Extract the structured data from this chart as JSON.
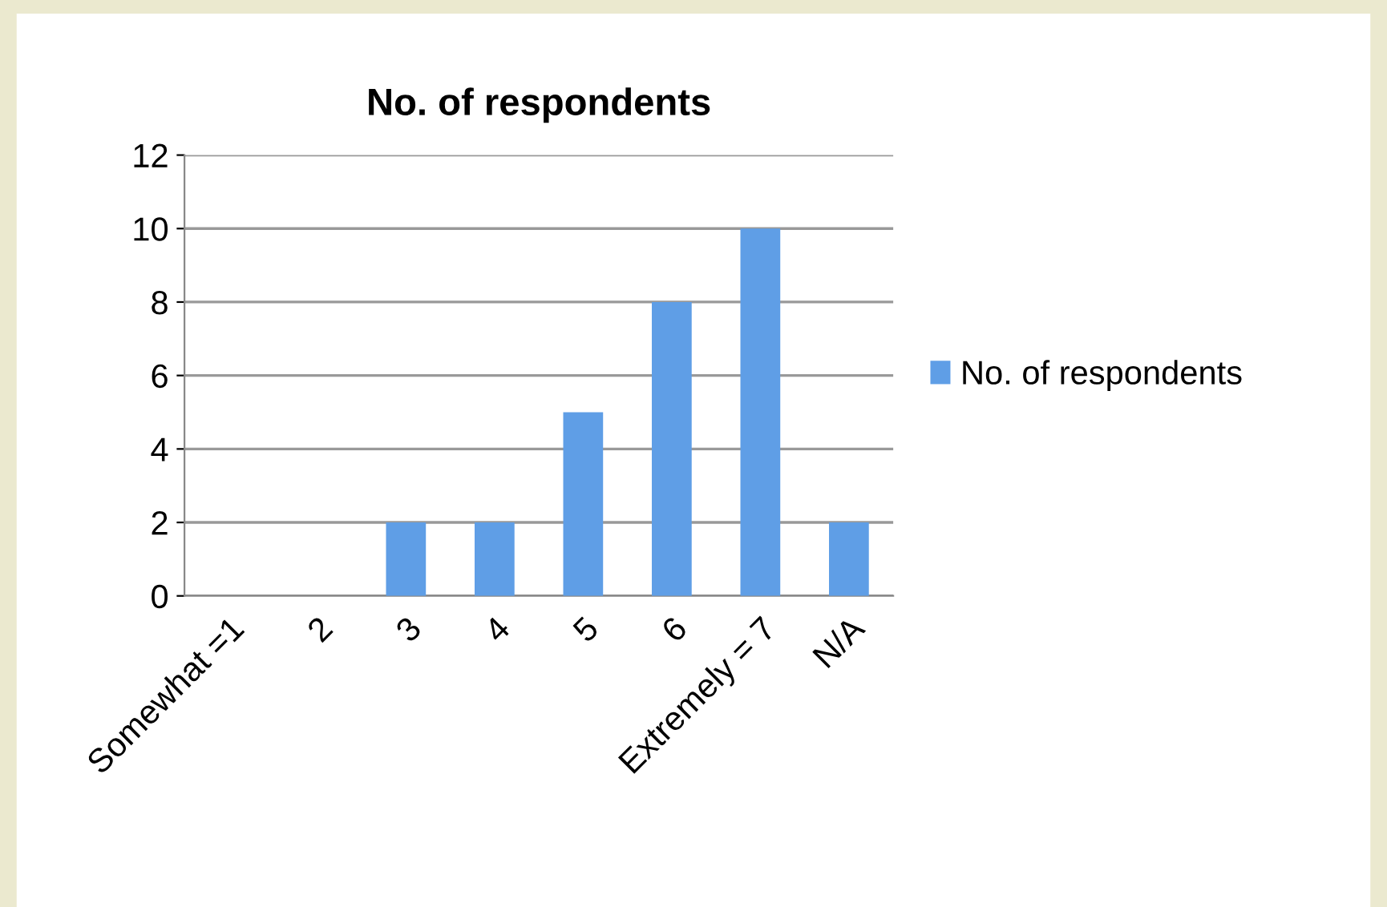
{
  "chart_data": {
    "type": "bar",
    "title": "No. of respondents",
    "categories": [
      "Somewhat =1",
      "2",
      "3",
      "4",
      "5",
      "6",
      "Extremely = 7",
      "N/A"
    ],
    "series": [
      {
        "name": "No. of respondents",
        "color": "#5f9ee6",
        "values": [
          0,
          0,
          2,
          2,
          5,
          8,
          10,
          2
        ]
      }
    ],
    "ylim": [
      0,
      12
    ],
    "yticks": [
      0,
      2,
      4,
      6,
      8,
      10,
      12
    ],
    "grid": "y",
    "legend": "right"
  }
}
